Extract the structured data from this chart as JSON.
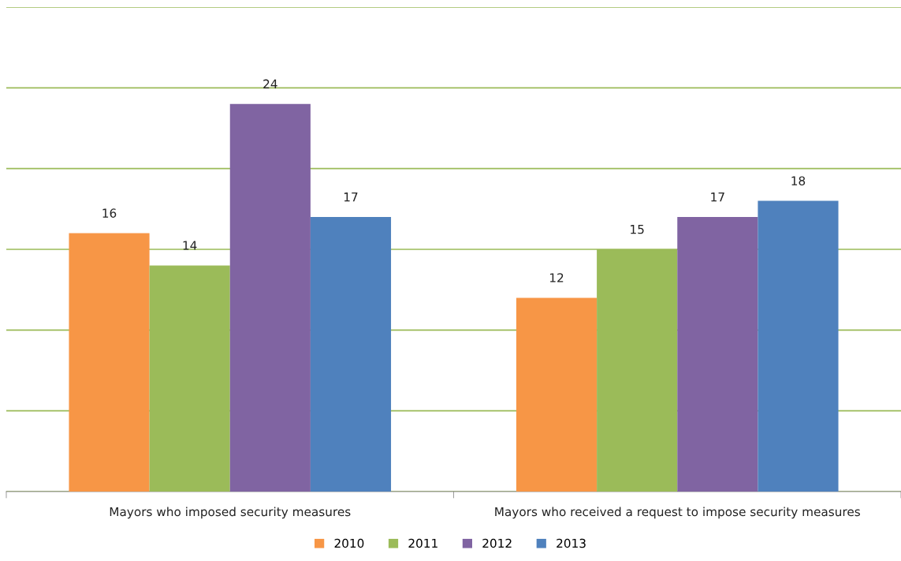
{
  "chart_data": {
    "type": "bar",
    "categories": [
      "Mayors who imposed security measures",
      "Mayors who received a request to impose security measures"
    ],
    "series": [
      {
        "name": "2010",
        "color": "#f79646",
        "values": [
          16,
          12
        ]
      },
      {
        "name": "2011",
        "color": "#9bbb59",
        "values": [
          14,
          15
        ]
      },
      {
        "name": "2012",
        "color": "#8064a2",
        "values": [
          24,
          17
        ]
      },
      {
        "name": "2013",
        "color": "#4f81bd",
        "values": [
          17,
          18
        ]
      }
    ],
    "ylim": [
      0,
      30
    ],
    "yticks": [
      {
        "value": 0,
        "label": null
      },
      {
        "value": 5,
        "label": null
      },
      {
        "value": 10,
        "label": null
      },
      {
        "value": 15,
        "label": null
      },
      {
        "value": 20,
        "label": null
      },
      {
        "value": 25,
        "label": null
      },
      {
        "value": 30,
        "label": null
      }
    ],
    "grid": "y",
    "legend": "bottom",
    "data_labels": true,
    "tick_labels": "x"
  }
}
